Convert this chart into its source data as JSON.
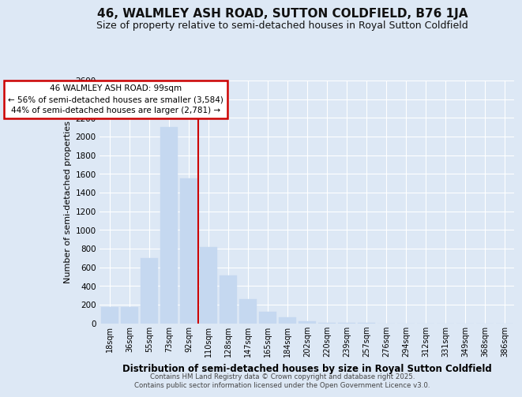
{
  "title": "46, WALMLEY ASH ROAD, SUTTON COLDFIELD, B76 1JA",
  "subtitle": "Size of property relative to semi-detached houses in Royal Sutton Coldfield",
  "xlabel": "Distribution of semi-detached houses by size in Royal Sutton Coldfield",
  "ylabel": "Number of semi-detached properties",
  "categories": [
    "18sqm",
    "36sqm",
    "55sqm",
    "73sqm",
    "92sqm",
    "110sqm",
    "128sqm",
    "147sqm",
    "165sqm",
    "184sqm",
    "202sqm",
    "220sqm",
    "239sqm",
    "257sqm",
    "276sqm",
    "294sqm",
    "312sqm",
    "331sqm",
    "349sqm",
    "368sqm",
    "386sqm"
  ],
  "values": [
    170,
    175,
    700,
    2100,
    1550,
    820,
    510,
    255,
    125,
    65,
    20,
    5,
    2,
    1,
    0,
    0,
    0,
    0,
    0,
    0,
    0
  ],
  "bar_color": "#c5d8f0",
  "bar_edgecolor": "#c5d8f0",
  "vline_x": 4.5,
  "vline_color": "#cc0000",
  "ann_line1": "46 WALMLEY ASH ROAD: 99sqm",
  "ann_line2": "← 56% of semi-detached houses are smaller (3,584)",
  "ann_line3": "44% of semi-detached houses are larger (2,781) →",
  "annotation_box_color": "#cc0000",
  "annotation_box_fill": "#ffffff",
  "ylim": [
    0,
    2600
  ],
  "yticks": [
    0,
    200,
    400,
    600,
    800,
    1000,
    1200,
    1400,
    1600,
    1800,
    2000,
    2200,
    2400,
    2600
  ],
  "background_color": "#dde8f5",
  "grid_color": "#ffffff",
  "footer_line1": "Contains HM Land Registry data © Crown copyright and database right 2025.",
  "footer_line2": "Contains public sector information licensed under the Open Government Licence v3.0.",
  "title_fontsize": 11,
  "subtitle_fontsize": 9,
  "xlabel_fontsize": 8.5,
  "ylabel_fontsize": 8
}
